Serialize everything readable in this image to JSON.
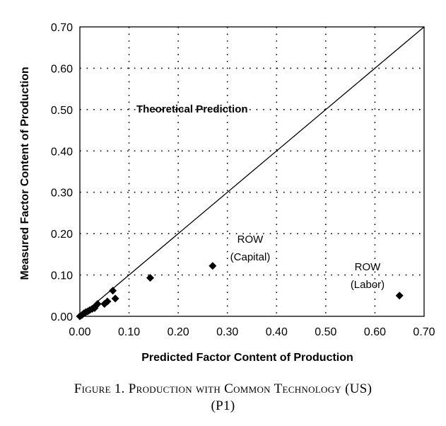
{
  "caption": {
    "line1": "Figure 1. Production with Common Technology (US)",
    "line2": "(P1)"
  },
  "chart_data": {
    "type": "scatter",
    "title": "",
    "xlabel": "Predicted Factor Content of Production",
    "ylabel": "Measured Factor Content of Production",
    "xlim": [
      0,
      0.7
    ],
    "ylim": [
      0,
      0.7
    ],
    "xticks": [
      "0.00",
      "0.10",
      "0.20",
      "0.30",
      "0.40",
      "0.50",
      "0.60",
      "0.70"
    ],
    "yticks": [
      "0.00",
      "0.10",
      "0.20",
      "0.30",
      "0.40",
      "0.50",
      "0.60",
      "0.70"
    ],
    "grid": "dotted",
    "points": [
      {
        "x": 0.0,
        "y": 0.0
      },
      {
        "x": 0.004,
        "y": 0.003
      },
      {
        "x": 0.008,
        "y": 0.007
      },
      {
        "x": 0.012,
        "y": 0.01
      },
      {
        "x": 0.016,
        "y": 0.012
      },
      {
        "x": 0.02,
        "y": 0.015
      },
      {
        "x": 0.025,
        "y": 0.018
      },
      {
        "x": 0.03,
        "y": 0.02
      },
      {
        "x": 0.033,
        "y": 0.026
      },
      {
        "x": 0.036,
        "y": 0.03
      },
      {
        "x": 0.05,
        "y": 0.03
      },
      {
        "x": 0.056,
        "y": 0.036
      },
      {
        "x": 0.067,
        "y": 0.062
      },
      {
        "x": 0.072,
        "y": 0.043
      },
      {
        "x": 0.143,
        "y": 0.093
      },
      {
        "x": 0.27,
        "y": 0.122
      },
      {
        "x": 0.65,
        "y": 0.05
      }
    ],
    "reference_line": {
      "from": [
        0,
        0
      ],
      "to": [
        0.7,
        0.7
      ],
      "label": "Theoretical Prediction"
    },
    "annotations": [
      {
        "line1": "ROW",
        "line2": "(Capital)"
      },
      {
        "line1": "ROW",
        "line2": "(Labor)"
      }
    ]
  }
}
